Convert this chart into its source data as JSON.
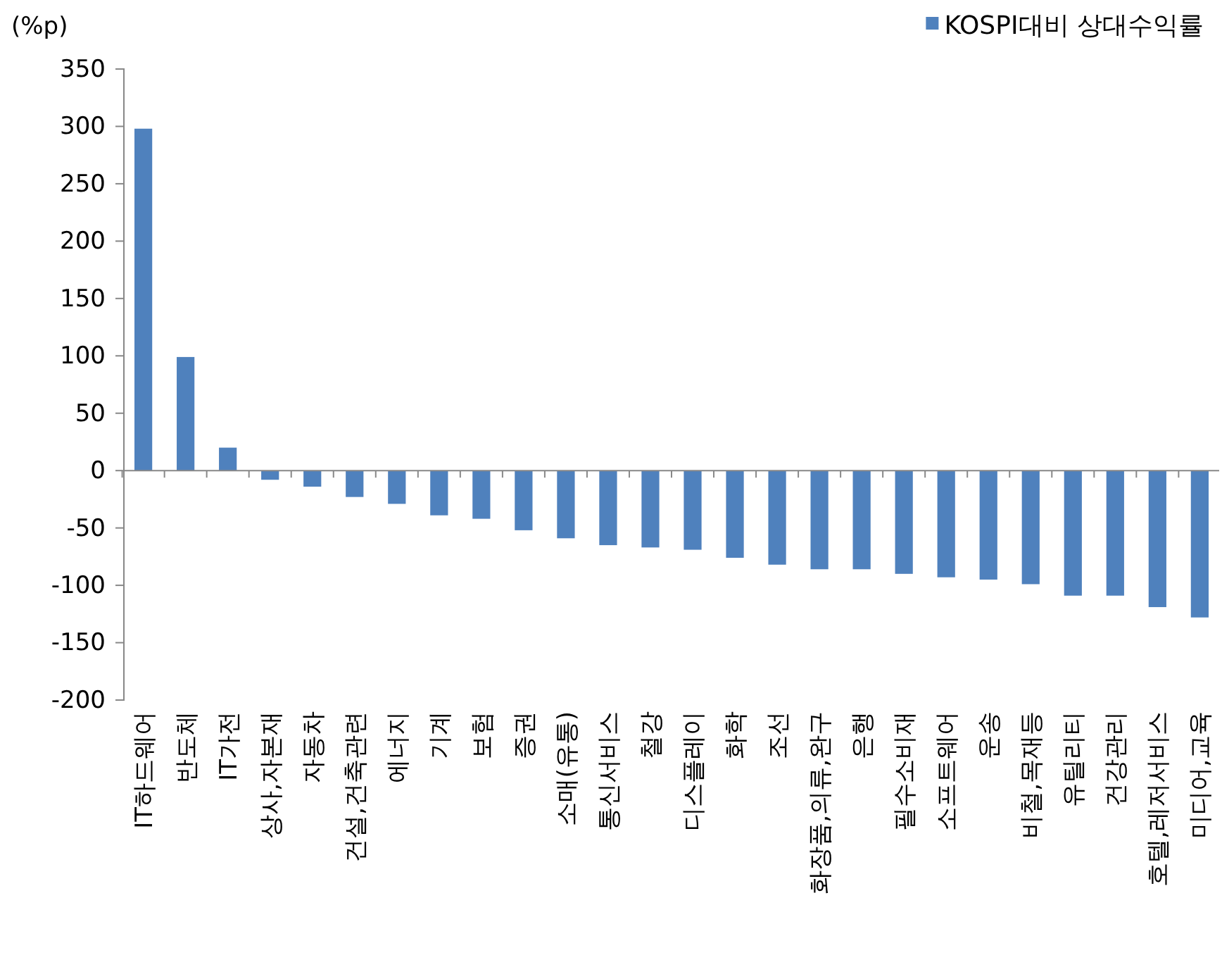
{
  "chart_data": {
    "type": "bar",
    "ylabel": "(%p)",
    "categories": [
      "IT하드웨어",
      "반도체",
      "IT가전",
      "상사,자본재",
      "자동차",
      "건설,건축관련",
      "에너지",
      "기계",
      "보험",
      "증권",
      "소매(유통)",
      "통신서비스",
      "철강",
      "디스플레이",
      "화학",
      "조선",
      "화장품,의류,완구",
      "은행",
      "필수소비재",
      "소프트웨어",
      "운송",
      "비철,목재등",
      "유틸리티",
      "건강관리",
      "호텔,레저서비스",
      "미디어,교육"
    ],
    "series": [
      {
        "name": "KOSPI대비 상대수익률",
        "color": "#4f81bd",
        "values": [
          298,
          99,
          20,
          -8,
          -14,
          -23,
          -29,
          -39,
          -42,
          -52,
          -59,
          -65,
          -67,
          -69,
          -76,
          -82,
          -86,
          -86,
          -90,
          -93,
          -95,
          -99,
          -109,
          -109,
          -119,
          -128
        ]
      }
    ],
    "ylim": [
      -200,
      350
    ],
    "yticks": [
      -200,
      -150,
      -100,
      -50,
      0,
      50,
      100,
      150,
      200,
      250,
      300,
      350
    ],
    "legend": "top right"
  }
}
